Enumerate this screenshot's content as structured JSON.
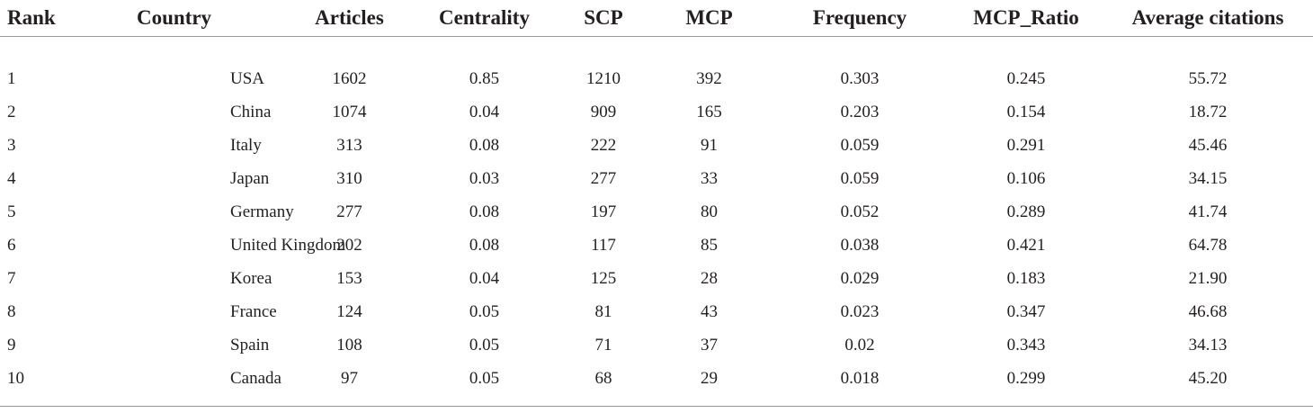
{
  "table": {
    "headers": [
      "Rank",
      "Country",
      "Articles",
      "Centrality",
      "SCP",
      "MCP",
      "Frequency",
      "MCP_Ratio",
      "Average citations"
    ],
    "rows": [
      [
        "1",
        "USA",
        "1602",
        "0.85",
        "1210",
        "392",
        "0.303",
        "0.245",
        "55.72"
      ],
      [
        "2",
        "China",
        "1074",
        "0.04",
        "909",
        "165",
        "0.203",
        "0.154",
        "18.72"
      ],
      [
        "3",
        "Italy",
        "313",
        "0.08",
        "222",
        "91",
        "0.059",
        "0.291",
        "45.46"
      ],
      [
        "4",
        "Japan",
        "310",
        "0.03",
        "277",
        "33",
        "0.059",
        "0.106",
        "34.15"
      ],
      [
        "5",
        "Germany",
        "277",
        "0.08",
        "197",
        "80",
        "0.052",
        "0.289",
        "41.74"
      ],
      [
        "6",
        "United Kingdom",
        "202",
        "0.08",
        "117",
        "85",
        "0.038",
        "0.421",
        "64.78"
      ],
      [
        "7",
        "Korea",
        "153",
        "0.04",
        "125",
        "28",
        "0.029",
        "0.183",
        "21.90"
      ],
      [
        "8",
        "France",
        "124",
        "0.05",
        "81",
        "43",
        "0.023",
        "0.347",
        "46.68"
      ],
      [
        "9",
        "Spain",
        "108",
        "0.05",
        "71",
        "37",
        "0.02",
        "0.343",
        "34.13"
      ],
      [
        "10",
        "Canada",
        "97",
        "0.05",
        "68",
        "29",
        "0.018",
        "0.299",
        "45.20"
      ]
    ]
  }
}
